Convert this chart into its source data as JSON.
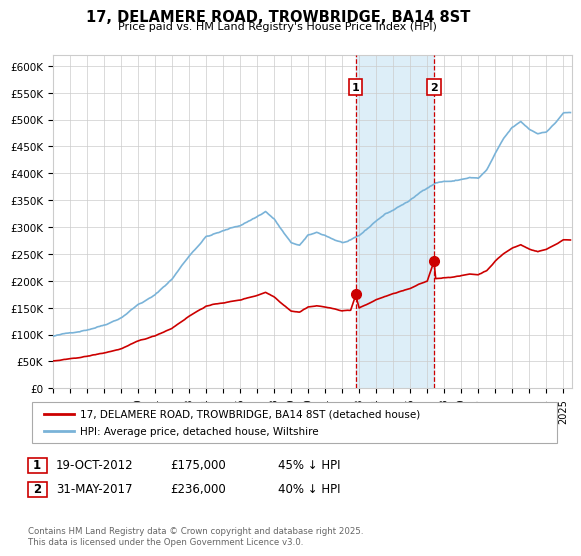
{
  "title": "17, DELAMERE ROAD, TROWBRIDGE, BA14 8ST",
  "subtitle": "Price paid vs. HM Land Registry's House Price Index (HPI)",
  "ylim": [
    0,
    620000
  ],
  "yticks": [
    0,
    50000,
    100000,
    150000,
    200000,
    250000,
    300000,
    350000,
    400000,
    450000,
    500000,
    550000,
    600000
  ],
  "ytick_labels": [
    "£0",
    "£50K",
    "£100K",
    "£150K",
    "£200K",
    "£250K",
    "£300K",
    "£350K",
    "£400K",
    "£450K",
    "£500K",
    "£550K",
    "£600K"
  ],
  "background_color": "#ffffff",
  "plot_bg_color": "#ffffff",
  "grid_color": "#cccccc",
  "hpi_color": "#7ab3d8",
  "hpi_fill_color": "#ddeef8",
  "price_color": "#cc0000",
  "vline_color": "#cc0000",
  "marker_color": "#cc0000",
  "span_color": "#ddeef8",
  "transaction1": {
    "date_x": 2012.8,
    "price": 175000,
    "label": "1",
    "label_date": "19-OCT-2012",
    "label_price": "£175,000",
    "label_hpi": "45% ↓ HPI"
  },
  "transaction2": {
    "date_x": 2017.4,
    "price": 236000,
    "label": "2",
    "label_date": "31-MAY-2017",
    "label_price": "£236,000",
    "label_hpi": "40% ↓ HPI"
  },
  "legend_line1": "17, DELAMERE ROAD, TROWBRIDGE, BA14 8ST (detached house)",
  "legend_line2": "HPI: Average price, detached house, Wiltshire",
  "footer": "Contains HM Land Registry data © Crown copyright and database right 2025.\nThis data is licensed under the Open Government Licence v3.0.",
  "xlim": [
    1995,
    2025.5
  ],
  "xticks": [
    1995,
    1996,
    1997,
    1998,
    1999,
    2000,
    2001,
    2002,
    2003,
    2004,
    2005,
    2006,
    2007,
    2008,
    2009,
    2010,
    2011,
    2012,
    2013,
    2014,
    2015,
    2016,
    2017,
    2018,
    2019,
    2020,
    2021,
    2022,
    2023,
    2024,
    2025
  ]
}
